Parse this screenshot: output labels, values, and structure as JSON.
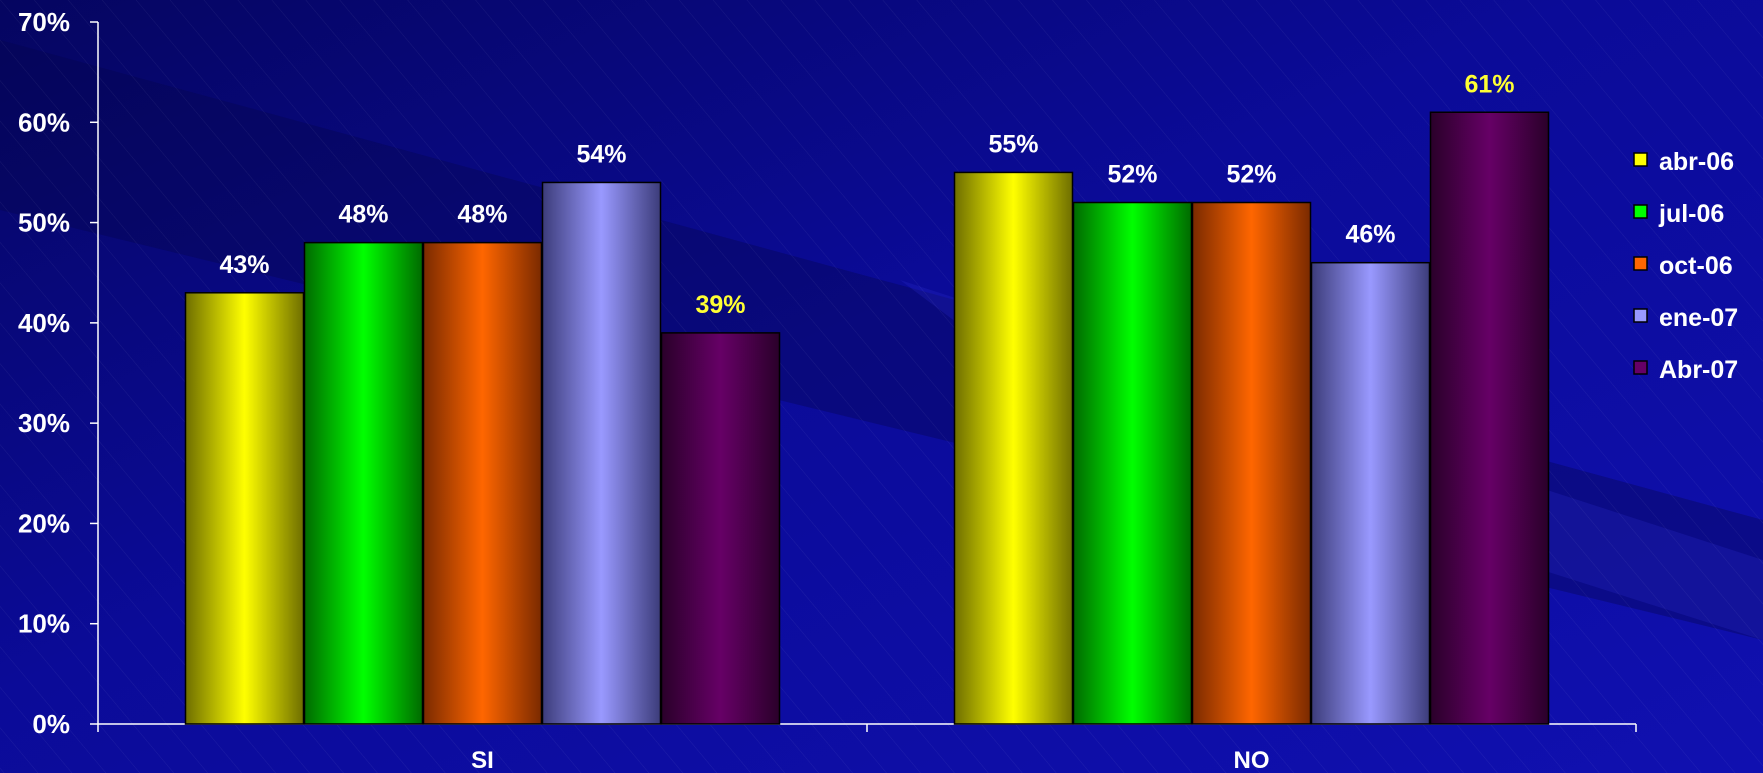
{
  "chart_data": {
    "type": "bar",
    "title": "",
    "xlabel": "",
    "ylabel": "",
    "categories": [
      "SI",
      "NO"
    ],
    "series": [
      {
        "name": "abr-06",
        "values": [
          43,
          55
        ],
        "color": "#ffff00",
        "edge": "#6e6e00"
      },
      {
        "name": "jul-06",
        "values": [
          48,
          52
        ],
        "color": "#00ff00",
        "edge": "#006a00"
      },
      {
        "name": "oct-06",
        "values": [
          48,
          52
        ],
        "color": "#ff6600",
        "edge": "#7a2a00"
      },
      {
        "name": "ene-07",
        "values": [
          54,
          46
        ],
        "color": "#9999ff",
        "edge": "#3c3c7a"
      },
      {
        "name": "Abr-07",
        "values": [
          39,
          61
        ],
        "color": "#660066",
        "edge": "#2a002a"
      }
    ],
    "data_labels": [
      [
        "43%",
        "55%"
      ],
      [
        "48%",
        "52%"
      ],
      [
        "48%",
        "52%"
      ],
      [
        "54%",
        "46%"
      ],
      [
        "39%",
        "61%"
      ]
    ],
    "highlight_label_color": "#ffff33",
    "ylim": [
      0,
      70
    ],
    "yticks": [
      "0%",
      "10%",
      "20%",
      "30%",
      "40%",
      "50%",
      "60%",
      "70%"
    ],
    "grid": false,
    "legend_position": "right"
  }
}
